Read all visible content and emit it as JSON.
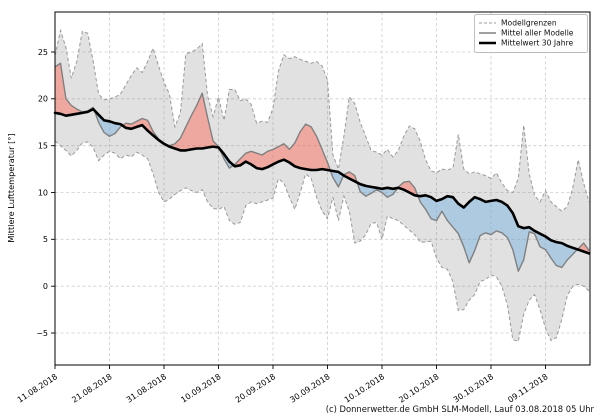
{
  "footer": {
    "copyright": "(c) Donnerwetter.de GmbH SLM-Modell, Lauf 03.08.2018 05 Uhr"
  },
  "colors": {
    "band_fill": "rgba(120,120,120,0.22)",
    "band_edge": "#999999",
    "above_fill": "rgba(255,100,80,0.45)",
    "below_fill": "rgba(110,175,225,0.45)",
    "model_mean_line": "#808080",
    "mean_30y_line": "#000000",
    "grid": "#cdcdcd",
    "axis": "#000000",
    "legend_border": "#bbbbbb"
  },
  "chart_data": {
    "type": "line",
    "title": "",
    "xlabel": "",
    "ylabel": "Mittlere Lufttemperatur [°]",
    "grid": true,
    "legend_position": "upper right",
    "start_date": "11.08.2018",
    "end_date": "17.11.2018",
    "n_days": 99,
    "ylim": [
      -8.4,
      29.3
    ],
    "y_ticks": [
      25,
      20,
      15,
      10,
      5,
      0,
      -5
    ],
    "y_tick_labels": [
      "25",
      "20",
      "15",
      "10",
      "5",
      "0",
      "−5"
    ],
    "x_ticks": [
      {
        "day": 0,
        "label": "11.08.2018"
      },
      {
        "day": 10,
        "label": "21.08.2018"
      },
      {
        "day": 20,
        "label": "31.08.2018"
      },
      {
        "day": 30,
        "label": "10.09.2018"
      },
      {
        "day": 40,
        "label": "20.09.2018"
      },
      {
        "day": 50,
        "label": "30.09.2018"
      },
      {
        "day": 60,
        "label": "10.10.2018"
      },
      {
        "day": 70,
        "label": "20.10.2018"
      },
      {
        "day": 80,
        "label": "30.10.2018"
      },
      {
        "day": 90,
        "label": "09.11.2018"
      }
    ],
    "legend": {
      "entries": [
        {
          "label": "Modellgrenzen",
          "style": "dashed-gray"
        },
        {
          "label": "Mittel aller Modelle",
          "style": "solid-gray"
        },
        {
          "label": "Mittelwert 30 Jahre",
          "style": "thick-black"
        }
      ]
    },
    "series": [
      {
        "key": "upper",
        "name": "Modellgrenzen (obere Grenze)",
        "unit": "°C",
        "values": [
          24.6,
          27.3,
          25.5,
          22.2,
          24.0,
          27.2,
          27.0,
          24.0,
          20.5,
          19.9,
          20.0,
          20.2,
          20.5,
          21.5,
          22.5,
          23.3,
          22.8,
          24.0,
          25.4,
          23.5,
          21.8,
          20.5,
          17.0,
          18.5,
          24.8,
          25.0,
          25.3,
          25.9,
          20.3,
          18.1,
          20.2,
          17.7,
          21.0,
          21.0,
          19.8,
          20.0,
          19.4,
          17.4,
          17.6,
          17.5,
          19.0,
          23.0,
          24.7,
          24.3,
          24.5,
          24.2,
          24.0,
          23.8,
          24.0,
          23.5,
          22.0,
          14.0,
          12.5,
          16.0,
          20.2,
          19.5,
          17.5,
          16.0,
          14.5,
          14.3,
          14.0,
          14.6,
          13.8,
          14.5,
          16.0,
          17.1,
          16.8,
          15.5,
          13.5,
          12.3,
          12.1,
          12.5,
          12.4,
          12.6,
          16.2,
          12.5,
          12.0,
          12.2,
          12.0,
          11.8,
          11.5,
          12.1,
          11.0,
          10.2,
          10.0,
          11.5,
          17.2,
          12.0,
          9.7,
          9.0,
          10.2,
          9.0,
          8.5,
          8.0,
          8.5,
          10.5,
          13.5,
          11.0,
          9.0
        ]
      },
      {
        "key": "lower",
        "name": "Modellgrenzen (untere Grenze)",
        "unit": "°C",
        "values": [
          15.5,
          15.0,
          14.5,
          13.9,
          14.5,
          15.3,
          15.4,
          14.8,
          13.4,
          14.0,
          14.4,
          14.2,
          13.6,
          14.0,
          13.8,
          14.3,
          14.0,
          13.6,
          12.0,
          10.0,
          9.0,
          9.3,
          9.8,
          10.2,
          10.5,
          10.2,
          10.0,
          10.3,
          9.0,
          8.3,
          8.2,
          8.5,
          7.0,
          6.6,
          6.8,
          8.6,
          9.0,
          8.8,
          9.0,
          9.2,
          9.4,
          11.5,
          11.0,
          9.5,
          8.2,
          10.0,
          12.0,
          11.5,
          9.5,
          8.0,
          7.2,
          9.5,
          7.0,
          9.6,
          8.0,
          4.6,
          4.8,
          5.5,
          6.7,
          6.8,
          5.0,
          7.5,
          7.2,
          7.0,
          6.5,
          6.0,
          5.5,
          4.7,
          4.7,
          4.8,
          3.0,
          2.0,
          1.8,
          0.5,
          -2.6,
          -2.5,
          -1.5,
          -0.9,
          0.5,
          0.7,
          1.2,
          1.0,
          0.0,
          -2.0,
          -5.7,
          -5.9,
          -3.0,
          -1.5,
          -0.9,
          -2.5,
          -4.5,
          -5.8,
          -5.5,
          -3.5,
          -1.0,
          0.0,
          0.2,
          0.0,
          -0.5
        ]
      },
      {
        "key": "model_mean",
        "name": "Mittel aller Modelle",
        "unit": "°C",
        "values": [
          23.4,
          23.8,
          20.0,
          19.3,
          18.9,
          18.6,
          18.7,
          19.1,
          17.5,
          16.4,
          16.0,
          16.3,
          17.0,
          17.4,
          17.3,
          17.6,
          17.9,
          17.7,
          16.5,
          15.7,
          15.2,
          15.0,
          15.2,
          15.8,
          17.0,
          18.2,
          19.3,
          20.6,
          18.0,
          15.5,
          14.9,
          13.6,
          12.6,
          13.0,
          13.6,
          14.2,
          14.4,
          14.2,
          14.0,
          14.4,
          14.6,
          14.9,
          15.2,
          14.6,
          15.3,
          16.5,
          17.3,
          17.0,
          16.0,
          14.6,
          13.2,
          11.6,
          10.6,
          11.9,
          12.2,
          11.8,
          10.1,
          9.6,
          9.9,
          10.3,
          10.0,
          9.5,
          9.8,
          10.6,
          11.1,
          11.2,
          10.5,
          9.0,
          8.2,
          7.2,
          7.0,
          8.0,
          7.0,
          6.3,
          5.6,
          4.2,
          2.5,
          3.8,
          5.4,
          5.7,
          5.5,
          5.9,
          5.7,
          5.2,
          3.9,
          1.6,
          2.8,
          5.8,
          5.6,
          4.2,
          3.9,
          3.0,
          2.2,
          2.0,
          2.8,
          3.4,
          4.0,
          4.6,
          3.8
        ]
      },
      {
        "key": "mean_30y",
        "name": "Mittelwert 30 Jahre",
        "unit": "°C",
        "values": [
          18.5,
          18.4,
          18.2,
          18.3,
          18.4,
          18.5,
          18.6,
          18.9,
          18.3,
          17.7,
          17.6,
          17.4,
          17.3,
          16.9,
          16.8,
          17.0,
          17.2,
          16.6,
          16.1,
          15.6,
          15.2,
          14.9,
          14.7,
          14.5,
          14.5,
          14.6,
          14.7,
          14.7,
          14.8,
          14.9,
          14.8,
          14.1,
          13.3,
          12.8,
          12.9,
          13.3,
          13.0,
          12.6,
          12.5,
          12.7,
          13.0,
          13.3,
          13.5,
          13.2,
          12.8,
          12.6,
          12.5,
          12.4,
          12.4,
          12.5,
          12.4,
          12.3,
          12.2,
          11.8,
          11.5,
          11.2,
          10.9,
          10.7,
          10.6,
          10.5,
          10.4,
          10.5,
          10.4,
          10.5,
          10.3,
          10.0,
          9.7,
          9.6,
          9.7,
          9.5,
          9.1,
          9.3,
          9.6,
          9.5,
          8.8,
          8.4,
          9.0,
          9.5,
          9.3,
          9.0,
          9.1,
          9.2,
          9.0,
          8.6,
          7.8,
          6.4,
          6.2,
          6.3,
          5.9,
          5.6,
          5.3,
          4.9,
          4.7,
          4.6,
          4.3,
          4.1,
          3.9,
          3.7,
          3.5
        ]
      }
    ]
  }
}
